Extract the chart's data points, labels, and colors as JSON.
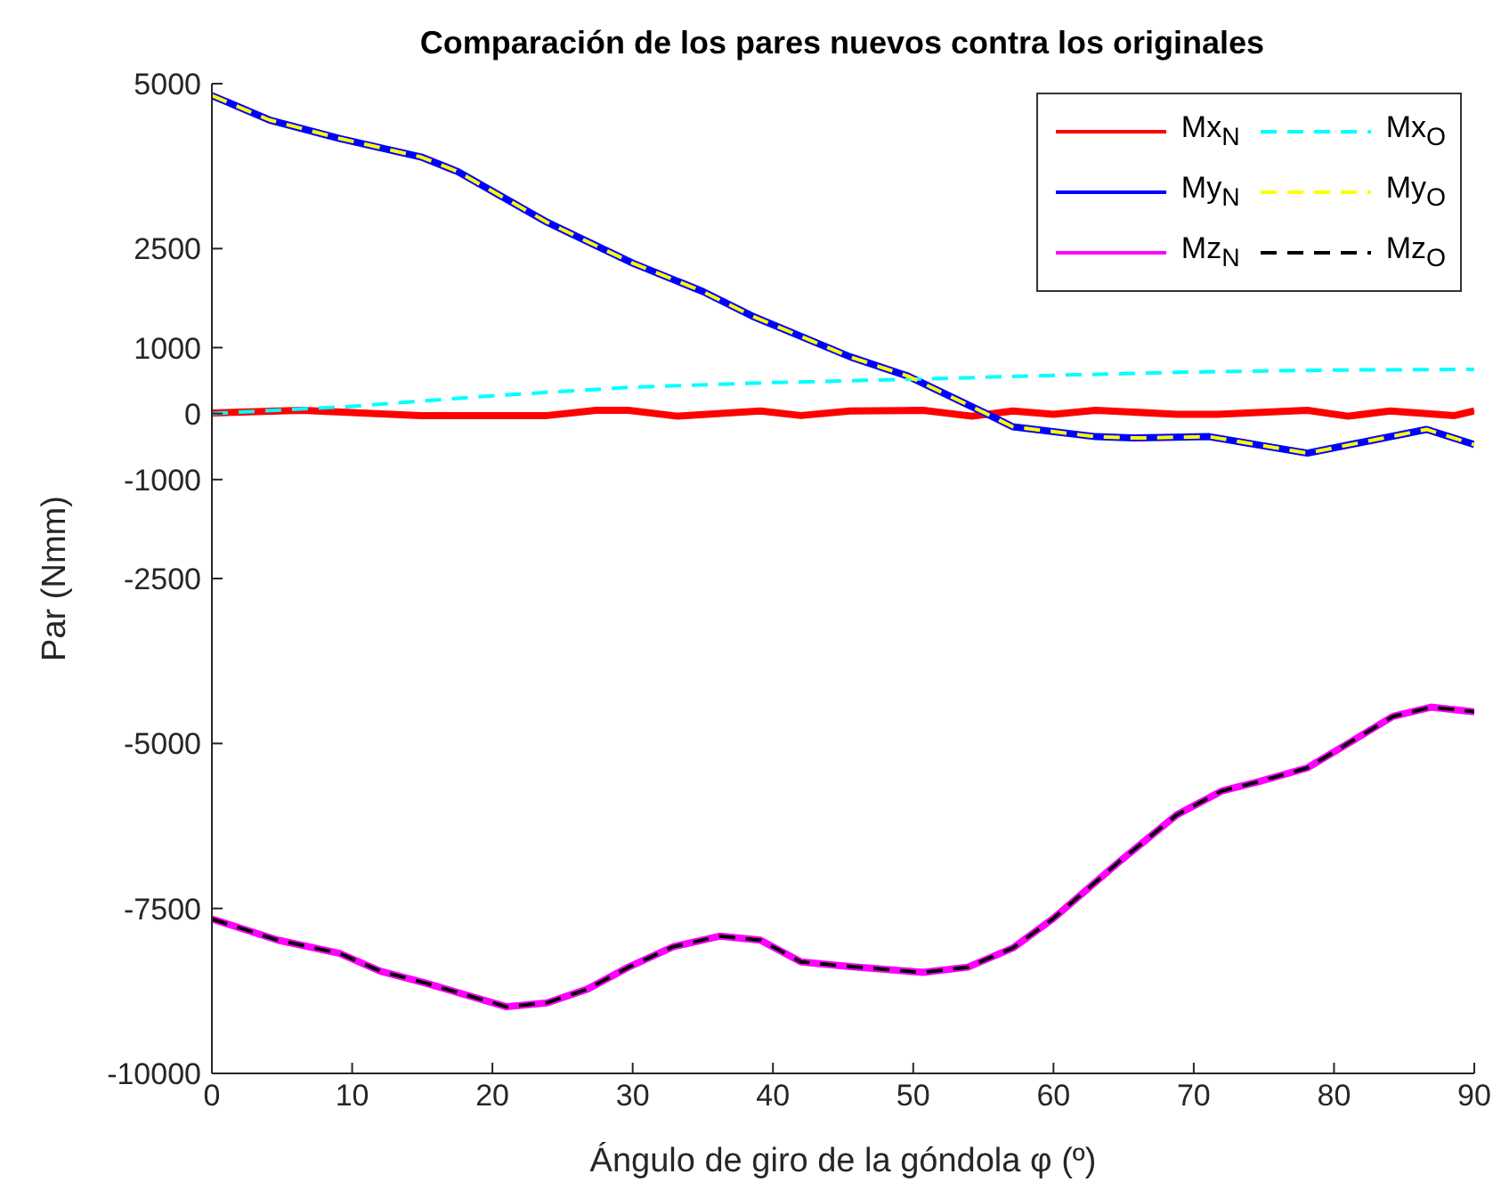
{
  "chart_data": {
    "type": "line",
    "title": "Comparación de los pares nuevos contra los originales",
    "xlabel": "Ángulo de giro de la góndola φ (º)",
    "ylabel": "Par (Nmm)",
    "xlim": [
      0,
      90
    ],
    "xticks": [
      0,
      10,
      20,
      30,
      40,
      50,
      60,
      70,
      80,
      90
    ],
    "ylim": [
      -10000,
      5000
    ],
    "yticks": [
      -10000,
      -7500,
      -5000,
      -2500,
      -1000,
      0,
      1000,
      2500,
      5000
    ],
    "grid": false,
    "legend": "top right",
    "marker": "none",
    "series": [
      {
        "name": "Mx$_{N}$",
        "color": "#ff0000",
        "line_style": "solid",
        "x": [
          0,
          6.4,
          14.9,
          23.9,
          27.4,
          29.7,
          33.2,
          39.1,
          42,
          45.5,
          50.7,
          54.2,
          57.1,
          60,
          63,
          68.8,
          71.7,
          78.1,
          81,
          84,
          88.6,
          90
        ],
        "values": [
          10,
          50,
          -30,
          -30,
          50,
          50,
          -40,
          40,
          -30,
          40,
          50,
          -40,
          40,
          -10,
          50,
          -10,
          -10,
          50,
          -40,
          40,
          -30,
          40
        ]
      },
      {
        "name": "My$_{N}$",
        "color": "#0000ff",
        "line_style": "solid",
        "x": [
          0,
          4.1,
          9.1,
          14.9,
          17.5,
          23.9,
          30,
          35,
          38.5,
          45.5,
          49.6,
          55.1,
          57.1,
          63,
          65.9,
          71.1,
          78.1,
          86.6,
          90
        ],
        "values": [
          4820,
          4450,
          4170,
          3890,
          3670,
          2900,
          2280,
          1850,
          1480,
          860,
          570,
          10,
          -200,
          -350,
          -370,
          -350,
          -600,
          -240,
          -470
        ]
      },
      {
        "name": "Mz$_{N}$",
        "color": "#ff00ff",
        "line_style": "solid",
        "x": [
          0,
          4.7,
          9.1,
          12,
          15.2,
          21,
          23.9,
          26.8,
          29.7,
          32.9,
          36.2,
          39.1,
          42,
          45.5,
          50.7,
          53.9,
          57.1,
          60,
          64.7,
          68.8,
          72,
          74.6,
          78.1,
          81,
          84.2,
          86.9,
          90
        ],
        "values": [
          -7660,
          -7980,
          -8180,
          -8450,
          -8630,
          -8990,
          -8930,
          -8720,
          -8390,
          -8080,
          -7920,
          -7980,
          -8310,
          -8380,
          -8470,
          -8390,
          -8100,
          -7650,
          -6790,
          -6080,
          -5720,
          -5580,
          -5370,
          -5000,
          -4590,
          -4450,
          -4520
        ]
      },
      {
        "name": "Mx$_{O}$",
        "color": "#00ffff",
        "line_style": "dashed",
        "x": [
          0,
          10,
          20,
          30,
          40,
          50,
          60,
          70,
          80,
          90
        ],
        "values": [
          0,
          110,
          270,
          400,
          470,
          520,
          580,
          630,
          660,
          670
        ]
      },
      {
        "name": "My$_{O}$",
        "color": "#ffff00",
        "line_style": "dashed",
        "x": [
          0,
          4.1,
          9.1,
          14.9,
          17.5,
          23.9,
          30,
          35,
          38.5,
          45.5,
          49.6,
          55.1,
          57.1,
          63,
          65.9,
          71.1,
          78.1,
          86.6,
          90
        ],
        "values": [
          4820,
          4450,
          4170,
          3890,
          3670,
          2900,
          2280,
          1850,
          1480,
          860,
          570,
          10,
          -200,
          -350,
          -370,
          -350,
          -600,
          -240,
          -470
        ]
      },
      {
        "name": "Mz$_{O}$",
        "color": "#000000",
        "line_style": "dashed",
        "x": [
          0,
          4.7,
          9.1,
          12,
          15.2,
          21,
          23.9,
          26.8,
          29.7,
          32.9,
          36.2,
          39.1,
          42,
          45.5,
          50.7,
          53.9,
          57.1,
          60,
          64.7,
          68.8,
          72,
          74.6,
          78.1,
          81,
          84.2,
          86.9,
          90
        ],
        "values": [
          -7660,
          -7980,
          -8180,
          -8450,
          -8630,
          -8990,
          -8930,
          -8720,
          -8390,
          -8080,
          -7920,
          -7980,
          -8310,
          -8380,
          -8470,
          -8390,
          -8100,
          -7650,
          -6790,
          -6080,
          -5720,
          -5580,
          -5370,
          -5000,
          -4590,
          -4450,
          -4520
        ]
      }
    ]
  }
}
